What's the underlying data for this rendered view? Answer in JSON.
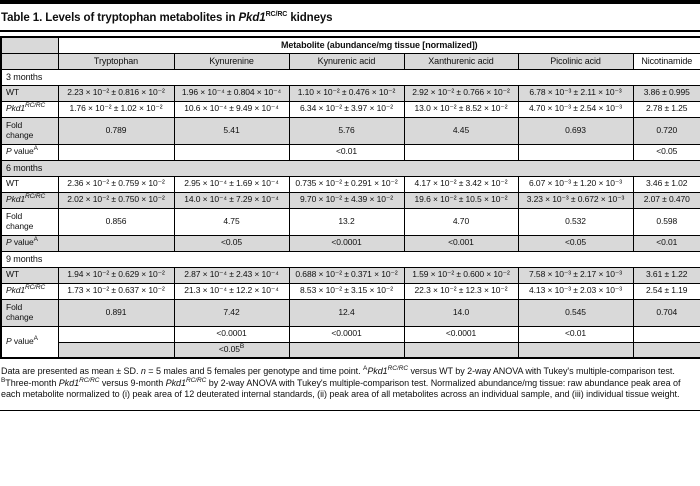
{
  "title": {
    "prefix": "Table 1. Levels of tryptophan metabolites in ",
    "gene": "Pkd1",
    "gene_sup": "RC/RC",
    "suffix": " kidneys"
  },
  "colors": {
    "row_stripe": "#d9d9d9",
    "rule": "#000000",
    "background": "#ffffff"
  },
  "table": {
    "group_header": "Metabolite (abundance/mg tissue [normalized])",
    "columns": [
      "Tryptophan",
      "Kynurenine",
      "Kynurenic acid",
      "Xanthurenic acid",
      "Picolinic acid",
      "Nicotinamide"
    ],
    "row_labels": {
      "wt": "WT",
      "mutant": {
        "italic": "Pkd1",
        "sup": "RC/RC"
      },
      "fold": "Fold\nchange",
      "pvalue": {
        "italic": "P",
        "text": " value",
        "sup": "A"
      }
    },
    "sections": [
      {
        "label": "3 months",
        "wt": [
          "2.23 × 10⁻² ± 0.816 × 10⁻²",
          "1.96 × 10⁻⁴ ± 0.804 × 10⁻⁴",
          "1.10 × 10⁻² ± 0.476 × 10⁻²",
          "2.92 × 10⁻² ± 0.766 × 10⁻²",
          "6.78 × 10⁻³ ± 2.11 × 10⁻³",
          "3.86 ± 0.995"
        ],
        "mutant": [
          "1.76 × 10⁻² ± 1.02 × 10⁻²",
          "10.6 × 10⁻⁴ ± 9.49 × 10⁻⁴",
          "6.34 × 10⁻² ± 3.97 × 10⁻²",
          "13.0 × 10⁻² ± 8.52 × 10⁻²",
          "4.70 × 10⁻³ ± 2.54 × 10⁻³",
          "2.78 ± 1.25"
        ],
        "fold": [
          "0.789",
          "5.41",
          "5.76",
          "4.45",
          "0.693",
          "0.720"
        ],
        "pvals": [
          "",
          "",
          "<0.01",
          "",
          "",
          "<0.05"
        ]
      },
      {
        "label": "6 months",
        "wt": [
          "2.36 × 10⁻² ± 0.759 × 10⁻²",
          "2.95 × 10⁻⁴ ± 1.69 × 10⁻⁴",
          "0.735 × 10⁻² ± 0.291 × 10⁻²",
          "4.17 × 10⁻² ± 3.42 × 10⁻²",
          "6.07 × 10⁻³ ± 1.20 × 10⁻³",
          "3.46 ± 1.02"
        ],
        "mutant": [
          "2.02 × 10⁻² ± 0.750 × 10⁻²",
          "14.0 × 10⁻⁴ ± 7.29 × 10⁻⁴",
          "9.70 × 10⁻² ± 4.39 × 10⁻²",
          "19.6 × 10⁻² ± 10.5 × 10⁻²",
          "3.23 × 10⁻³ ± 0.672 × 10⁻³",
          "2.07 ± 0.470"
        ],
        "fold": [
          "0.856",
          "4.75",
          "13.2",
          "4.70",
          "0.532",
          "0.598"
        ],
        "pvals": [
          "",
          "<0.05",
          "<0.0001",
          "<0.001",
          "<0.05",
          "<0.01"
        ]
      },
      {
        "label": "9 months",
        "wt": [
          "1.94 × 10⁻² ± 0.629 × 10⁻²",
          "2.87 × 10⁻⁴ ± 2.43 × 10⁻⁴",
          "0.688 × 10⁻² ± 0.371 × 10⁻²",
          "1.59 × 10⁻² ± 0.600 × 10⁻²",
          "7.58 × 10⁻³ ± 2.17 × 10⁻³",
          "3.61 ± 1.22"
        ],
        "mutant": [
          "1.73 × 10⁻² ± 0.637 × 10⁻²",
          "21.3 × 10⁻⁴ ± 12.2 × 10⁻⁴",
          "8.53 × 10⁻² ± 3.15 × 10⁻²",
          "22.3 × 10⁻² ± 12.3 × 10⁻²",
          "4.13 × 10⁻³ ± 2.03 × 10⁻³",
          "2.54 ± 1.19"
        ],
        "fold": [
          "0.891",
          "7.42",
          "12.4",
          "14.0",
          "0.545",
          "0.704"
        ],
        "pvals": [
          "",
          "<0.0001",
          "<0.0001",
          "<0.0001",
          "<0.01",
          ""
        ],
        "pvals2": [
          "",
          "<0.05^B",
          "",
          "",
          "",
          ""
        ]
      }
    ]
  },
  "footnote_segments": [
    {
      "t": "Data are presented as mean ± SD. "
    },
    {
      "t": "n",
      "i": true
    },
    {
      "t": " = 5 males and 5 females per genotype and time point. "
    },
    {
      "t": "A",
      "sup": true
    },
    {
      "t": "Pkd1",
      "i": true
    },
    {
      "t": "RC/RC",
      "i": true,
      "sup": true
    },
    {
      "t": " versus WT by 2-way ANOVA with Tukey's multiple-comparison test. "
    },
    {
      "t": "B",
      "sup": true
    },
    {
      "t": "Three-month "
    },
    {
      "t": "Pkd1",
      "i": true
    },
    {
      "t": "RC/RC",
      "i": true,
      "sup": true
    },
    {
      "t": " versus 9-month "
    },
    {
      "t": "Pkd1",
      "i": true
    },
    {
      "t": "RC/RC",
      "i": true,
      "sup": true
    },
    {
      "t": " by 2-way ANOVA with Tukey's multiple-comparison test. Normalized abundance/mg tissue: raw abundance peak area of each metabolite normalized to (i) peak area of 12 deuterated internal standards, (ii) peak area of all metabolites across an individual sample, and (iii) individual tissue weight."
    }
  ]
}
